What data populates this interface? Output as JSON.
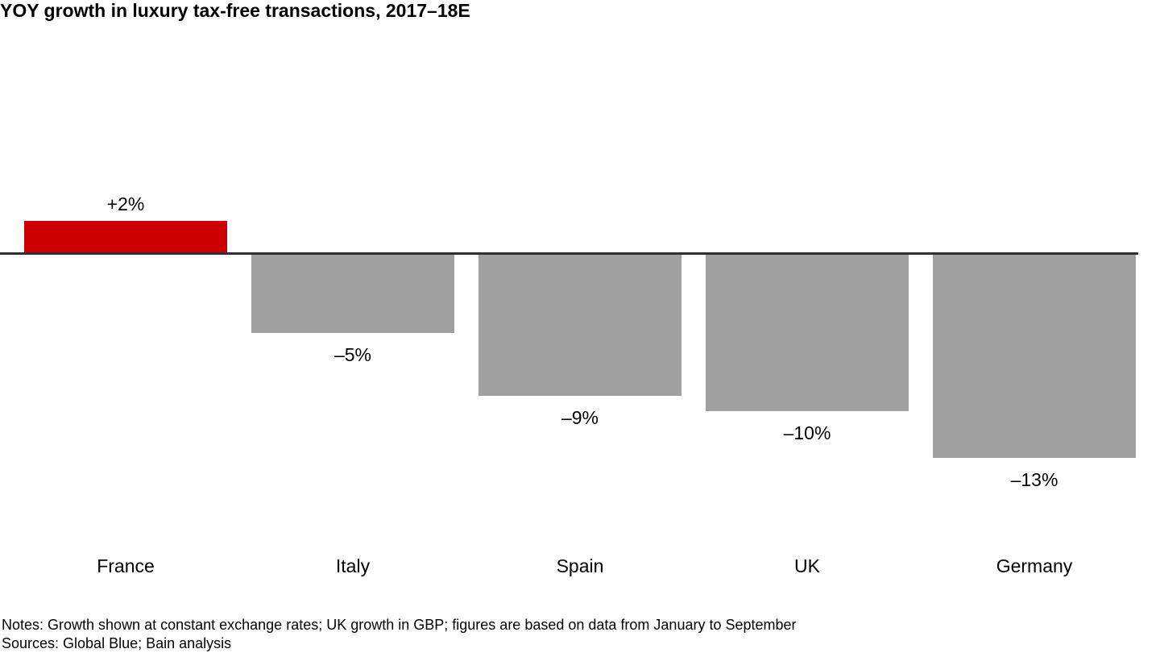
{
  "title": "YOY growth in luxury tax-free transactions, 2017–18E",
  "footer": {
    "notes": "Notes: Growth shown at constant exchange rates; UK growth in GBP; figures are based on data from January to September",
    "sources": "Sources: Global Blue; Bain analysis"
  },
  "chart_data": {
    "type": "bar",
    "title": "YOY growth in luxury tax-free transactions, 2017–18E",
    "categories": [
      "France",
      "Italy",
      "Spain",
      "UK",
      "Germany"
    ],
    "values": [
      2,
      -5,
      -9,
      -10,
      -13
    ],
    "value_labels": [
      "+2%",
      "–5%",
      "–9%",
      "–10%",
      "–13%"
    ],
    "unit": "%",
    "xlabel": "",
    "ylabel": "",
    "ylim": [
      -13,
      2
    ],
    "baseline": 0,
    "grid": false,
    "legend": false,
    "orientation": "vertical",
    "colors": {
      "positive_bar": "#CC0000",
      "negative_bar": "#A0A0A0",
      "baseline": "#303030",
      "text": "#000000"
    }
  }
}
